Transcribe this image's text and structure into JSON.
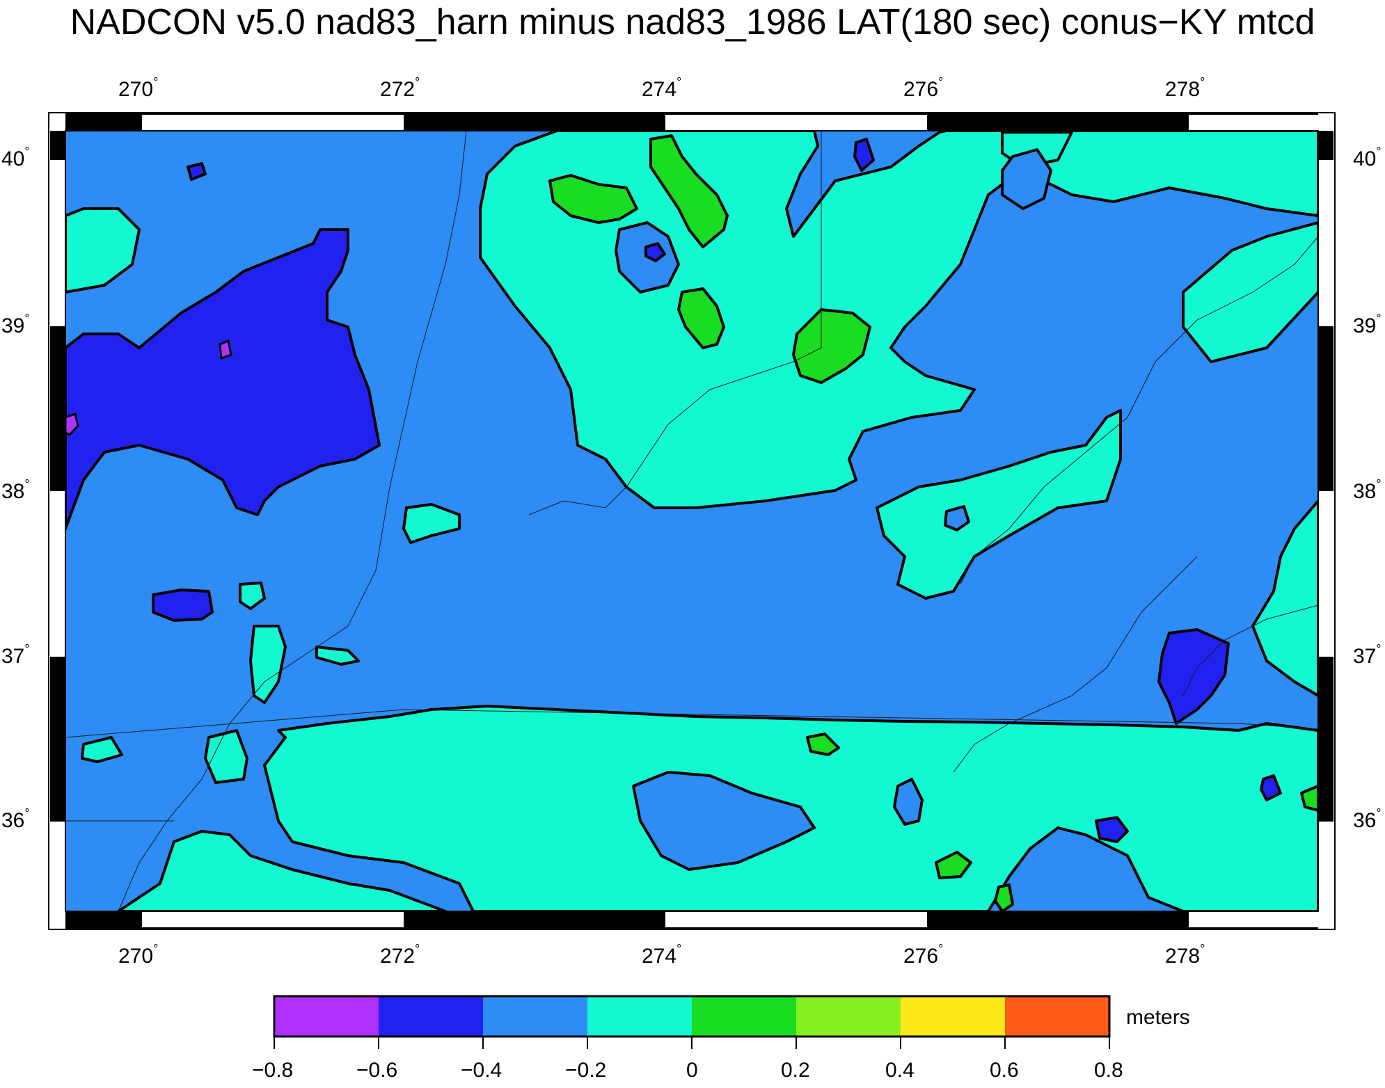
{
  "title": "NADCON v5.0 nad83_harn minus nad83_1986 LAT(180 sec) conus−KY mtcd",
  "map": {
    "x_ticks": [
      "270",
      "272",
      "274",
      "276",
      "278"
    ],
    "y_ticks": [
      "40",
      "39",
      "38",
      "37",
      "36"
    ],
    "degree_symbol": "°"
  },
  "colorbar": {
    "unit": "meters",
    "tick_labels": [
      "−0.8",
      "−0.6",
      "−0.4",
      "−0.2",
      "0",
      "0.2",
      "0.4",
      "0.6",
      "0.8"
    ],
    "bins": [
      {
        "from": -0.8,
        "to": -0.6,
        "color": "#b030ff"
      },
      {
        "from": -0.6,
        "to": -0.4,
        "color": "#2222f0"
      },
      {
        "from": -0.4,
        "to": -0.2,
        "color": "#2e8cf5"
      },
      {
        "from": -0.2,
        "to": 0.0,
        "color": "#12f8d0"
      },
      {
        "from": 0.0,
        "to": 0.2,
        "color": "#18dd22"
      },
      {
        "from": 0.2,
        "to": 0.4,
        "color": "#88f020"
      },
      {
        "from": 0.4,
        "to": 0.6,
        "color": "#ffe81a"
      },
      {
        "from": 0.6,
        "to": 0.8,
        "color": "#ff5a1a"
      }
    ]
  },
  "colors": {
    "background_field": "#2e8cf5",
    "zero_to_minus_0_2": "#12f8d0",
    "minus_0_4_to_minus_0_6": "#2222f0",
    "zero_to_0_2": "#18dd22"
  }
}
